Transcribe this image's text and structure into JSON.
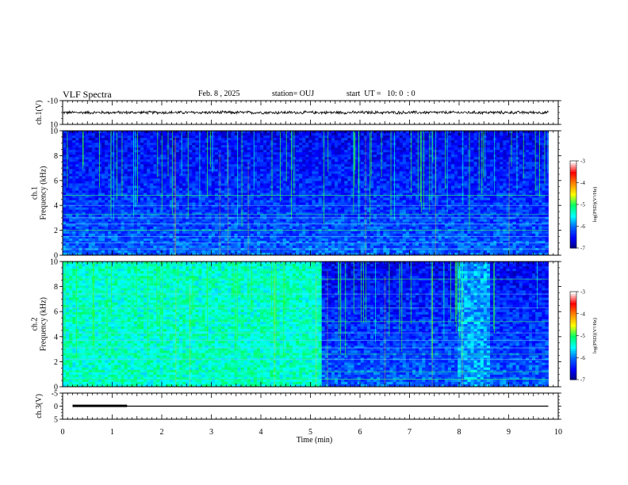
{
  "header": {
    "title": "VLF Spectra",
    "date": "Feb. 8 , 2025",
    "station": "station= OUJ",
    "start_ut": "start  UT =   10: 0  : 0"
  },
  "chart_data": [
    {
      "type": "line",
      "id": "ch1-waveform",
      "ylabel": "ch.1(V)",
      "yticklabels": [
        "10",
        "-10"
      ],
      "ylim": [
        -10,
        10
      ],
      "xlim": [
        0,
        10
      ],
      "series": [
        {
          "values_note": "",
          "x_range": [
            0,
            9.8
          ],
          "level": 0,
          "amplitude": 2.5
        }
      ],
      "color": "#000000"
    },
    {
      "type": "heatmap",
      "id": "ch1-spectrogram",
      "ylabel": "ch.1\nFrequency (kHz)",
      "ylabel_lines": [
        "ch.1",
        "Frequency  (kHz)"
      ],
      "yticklabels": [
        "0",
        "2",
        "4",
        "6",
        "8",
        "10"
      ],
      "ylim": [
        0,
        10
      ],
      "xlim": [
        0,
        10
      ],
      "data_x_extent": [
        0,
        9.8
      ],
      "colorbar": {
        "label": "log(PSD)(V²/Hz)",
        "ticks": [
          "-3",
          "-4",
          "-5",
          "-6",
          "-7"
        ],
        "range": [
          -7,
          -3
        ]
      },
      "segments": [
        {
          "x": [
            0,
            9.8
          ],
          "intensity": "low (dark blue)",
          "bursts": "many green/cyan vertical sferics above 6 kHz"
        }
      ],
      "harmonic_lines_khz": [
        0.5,
        1.0,
        1.5,
        2.0,
        2.5,
        3.0,
        3.3,
        4.0,
        4.8
      ]
    },
    {
      "type": "heatmap",
      "id": "ch2-spectrogram",
      "ylabel_lines": [
        "ch.2",
        "Frequency  (kHz)"
      ],
      "yticklabels": [
        "0",
        "2",
        "4",
        "6",
        "8",
        "10"
      ],
      "ylim": [
        0,
        10
      ],
      "xlim": [
        0,
        10
      ],
      "data_x_extent": [
        0,
        9.8
      ],
      "colorbar": {
        "label": "log(PSD)(V²/Hz)",
        "ticks": [
          "-3",
          "-4",
          "-5",
          "-6",
          "-7"
        ],
        "range": [
          -7,
          -3
        ]
      },
      "segments": [
        {
          "x": [
            0,
            5.2
          ],
          "intensity": "high (cyan/green)"
        },
        {
          "x": [
            5.2,
            8.0
          ],
          "intensity": "low (dark blue)"
        },
        {
          "x": [
            8.0,
            8.6
          ],
          "intensity": "medium (blue/cyan)"
        },
        {
          "x": [
            8.6,
            9.8
          ],
          "intensity": "low (dark blue)"
        }
      ]
    },
    {
      "type": "line",
      "id": "ch3-signal",
      "ylabel": "ch.3(V)",
      "yticklabels": [
        "5",
        "0",
        "-5"
      ],
      "ylim": [
        -5,
        5
      ],
      "xlim": [
        0,
        10
      ],
      "xlabel": "Time (min)",
      "xticklabels": [
        "0",
        "1",
        "2",
        "3",
        "4",
        "5",
        "6",
        "7",
        "8",
        "9",
        "10"
      ],
      "series": [
        {
          "x": [
            0.2,
            9.8
          ],
          "y": [
            0,
            0
          ]
        },
        {
          "x": [
            0.2,
            1.3
          ],
          "y": [
            0.1,
            0.1
          ],
          "thick": true
        }
      ],
      "color": "#000000"
    }
  ],
  "colors": {
    "axis": "#000000",
    "background": "#ffffff",
    "colormap": [
      "#00007a",
      "#0000ff",
      "#0066ff",
      "#00ffff",
      "#00ff66",
      "#ffff00",
      "#ff8800",
      "#ff0000",
      "#ffffff"
    ]
  }
}
